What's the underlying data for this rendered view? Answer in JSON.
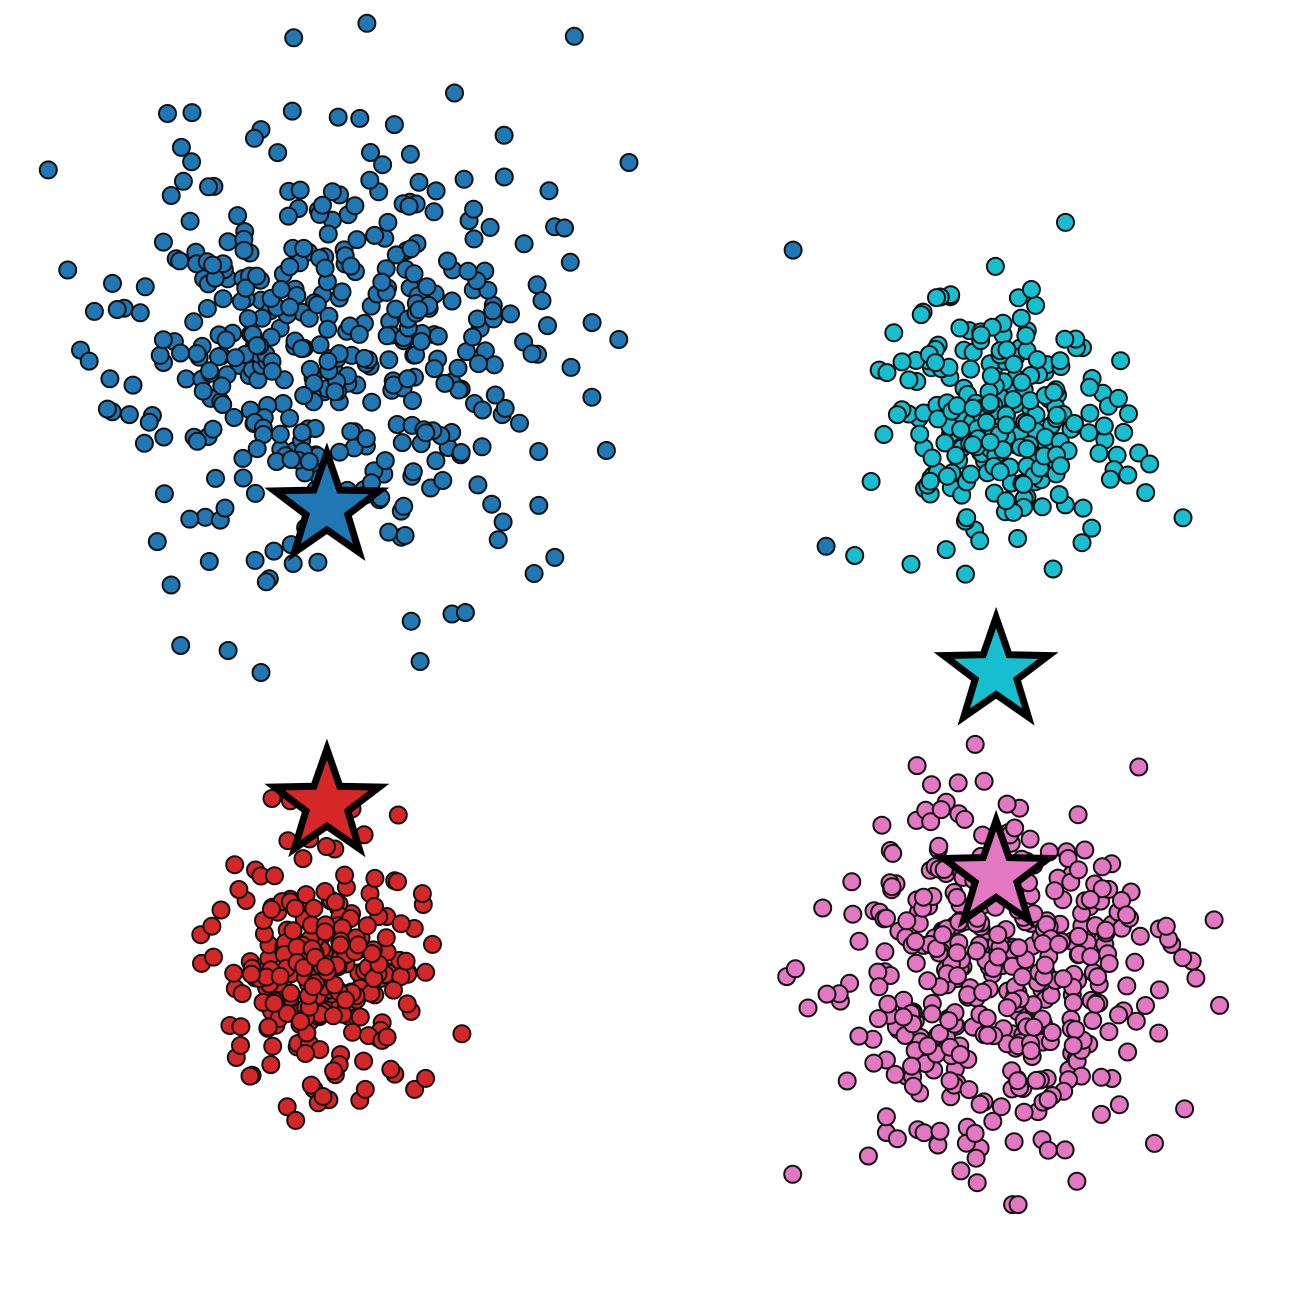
{
  "chart_data": {
    "type": "scatter",
    "axes_visible": false,
    "grid": false,
    "legend": "none",
    "xlim": [
      -1.05,
      1.05
    ],
    "ylim": [
      -1.05,
      1.05
    ],
    "marker_edge_color": "#111111",
    "series": [
      {
        "color": "#1f77b4",
        "center": [
          -0.6,
          0.56
        ],
        "spread": [
          0.19,
          0.19
        ],
        "count": 420,
        "seed": 11,
        "outliers": [
          [
            -0.54,
            0.98
          ],
          [
            -0.45,
            0.82
          ],
          [
            0.25,
            0.74
          ],
          [
            -0.38,
            0.72
          ],
          [
            -1.0,
            0.45
          ],
          [
            -0.96,
            0.44
          ],
          [
            0.31,
            0.2
          ],
          [
            -0.78,
            0.01
          ],
          [
            -0.72,
            -0.03
          ],
          [
            -0.43,
            -0.01
          ]
        ]
      },
      {
        "color": "#17becf",
        "center": [
          0.62,
          0.43
        ],
        "spread": [
          0.1,
          0.11
        ],
        "count": 240,
        "seed": 23,
        "outliers": [
          [
            0.44,
            0.44
          ],
          [
            0.88,
            0.37
          ],
          [
            0.9,
            0.35
          ],
          [
            0.86,
            0.33
          ],
          [
            0.59,
            0.21
          ]
        ]
      },
      {
        "color": "#d62728",
        "center": [
          -0.6,
          -0.57
        ],
        "spread": [
          0.085,
          0.1
        ],
        "count": 260,
        "seed": 37,
        "outliers": [
          [
            -0.54,
            -0.81
          ],
          [
            -0.53,
            -0.79
          ],
          [
            -0.44,
            -0.79
          ],
          [
            -0.42,
            -0.77
          ]
        ]
      },
      {
        "color": "#e377c2",
        "center": [
          0.62,
          -0.6
        ],
        "spread": [
          0.14,
          0.15
        ],
        "count": 430,
        "seed": 51,
        "outliers": [
          [
            0.82,
            -0.5
          ],
          [
            0.96,
            -0.55
          ],
          [
            0.37,
            -0.52
          ],
          [
            0.42,
            -0.84
          ],
          [
            0.44,
            -0.88
          ],
          [
            0.65,
            -1.0
          ],
          [
            0.66,
            -1.0
          ],
          [
            0.52,
            -0.28
          ],
          [
            0.64,
            -0.27
          ],
          [
            0.77,
            -0.39
          ]
        ]
      }
    ],
    "centroids": [
      {
        "color": "#1f77b4",
        "x": -0.6,
        "y": 0.27
      },
      {
        "color": "#17becf",
        "x": 0.62,
        "y": -0.03
      },
      {
        "color": "#d62728",
        "x": -0.6,
        "y": -0.27
      },
      {
        "color": "#e377c2",
        "x": 0.62,
        "y": -0.4
      }
    ]
  }
}
